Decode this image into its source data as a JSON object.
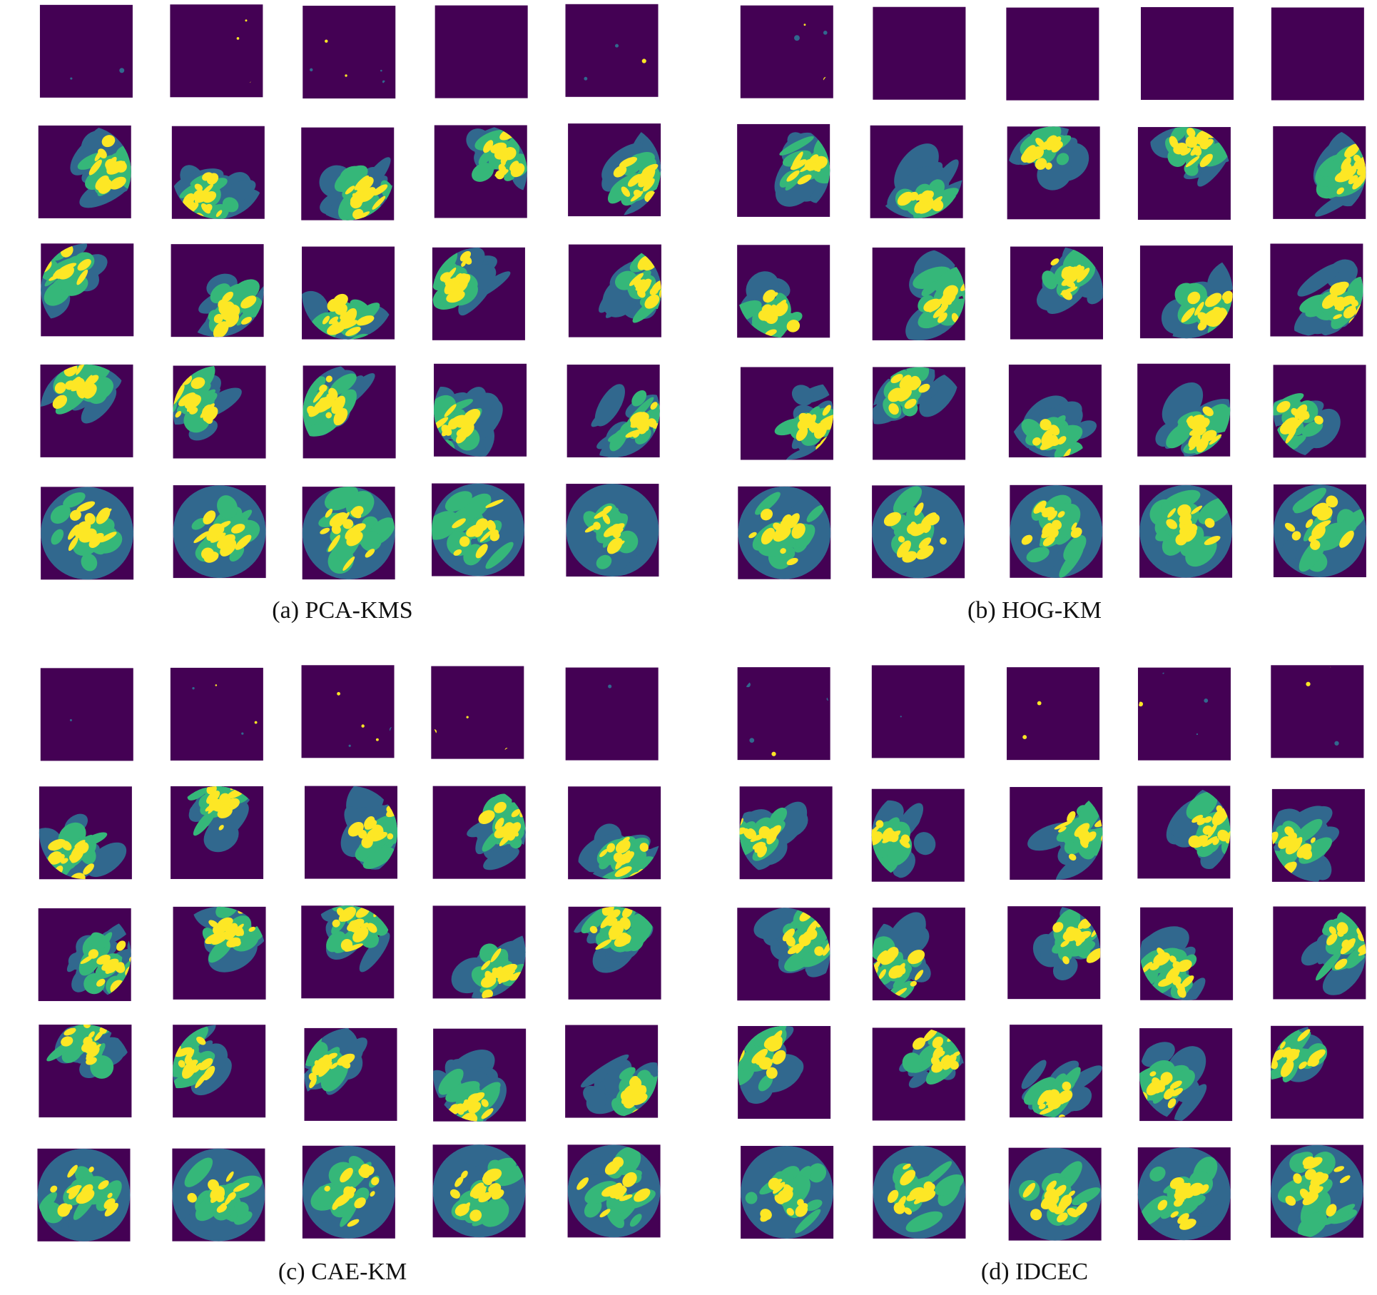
{
  "panels": [
    {
      "caption": "(a) PCA-KMS"
    },
    {
      "caption": "(b) HOG-KM"
    },
    {
      "caption": "(c) CAE-KM"
    },
    {
      "caption": "(d) IDCEC"
    }
  ]
}
